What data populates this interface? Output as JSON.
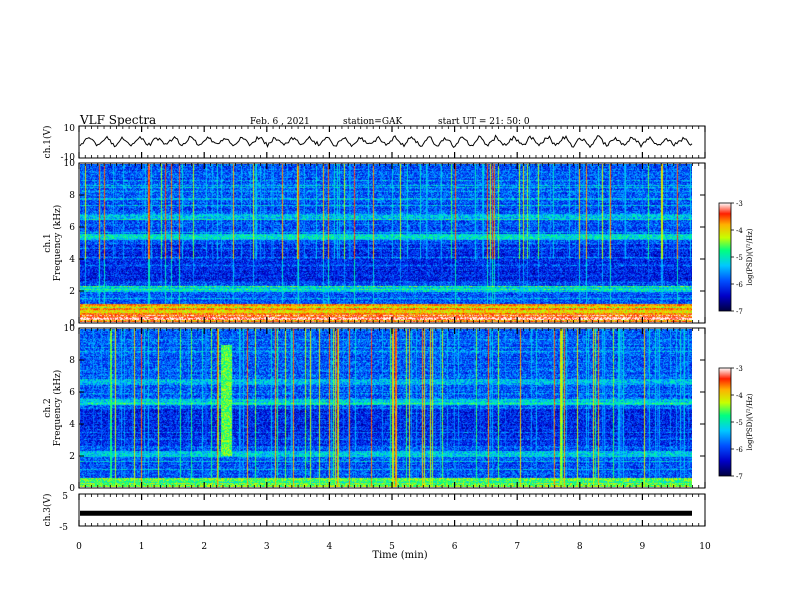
{
  "header": {
    "title": "VLF Spectra",
    "date": "Feb. 6 , 2021",
    "station": "station=GAK",
    "start": "start UT =  21: 50: 0"
  },
  "panels": {
    "ch1_wave_label": "ch.1(V)",
    "ch1_spec_label": "ch.1",
    "ch2_spec_label": "ch.2",
    "freq_label": "Frequency (kHz)",
    "ch3_label": "ch.3(V)",
    "colorbar_label": "log(PSD)(V²/Hz)"
  },
  "chart_data": {
    "type": "heatmap",
    "xlabel": "Time (min)",
    "xlim": [
      0,
      10
    ],
    "x_ticks": [
      "0",
      "1",
      "2",
      "3",
      "4",
      "5",
      "6",
      "7",
      "8",
      "9",
      "10"
    ],
    "ch1_wave": {
      "ylim": [
        -10,
        10
      ],
      "y_ticks": [
        "10",
        "-10"
      ]
    },
    "spectrograms": [
      {
        "name": "ch.1",
        "ylim": [
          0,
          10
        ],
        "y_ticks": [
          "0",
          "2",
          "4",
          "6",
          "8",
          "10"
        ]
      },
      {
        "name": "ch.2",
        "ylim": [
          0,
          10
        ],
        "y_ticks": [
          "0",
          "2",
          "4",
          "6",
          "8",
          "10"
        ]
      }
    ],
    "ch3_wave": {
      "ylim": [
        -5,
        5
      ],
      "y_ticks": [
        "5",
        "-5"
      ],
      "value": -1
    },
    "colorbar": {
      "range": [
        -7,
        -3
      ],
      "ticks": [
        "-3",
        "-4",
        "-5",
        "-6",
        "-7"
      ]
    },
    "colormap": [
      "#000040",
      "#0000c8",
      "#0050ff",
      "#00c8ff",
      "#00ff80",
      "#c8ff00",
      "#ffb000",
      "#ff2000",
      "#ffffff"
    ]
  }
}
